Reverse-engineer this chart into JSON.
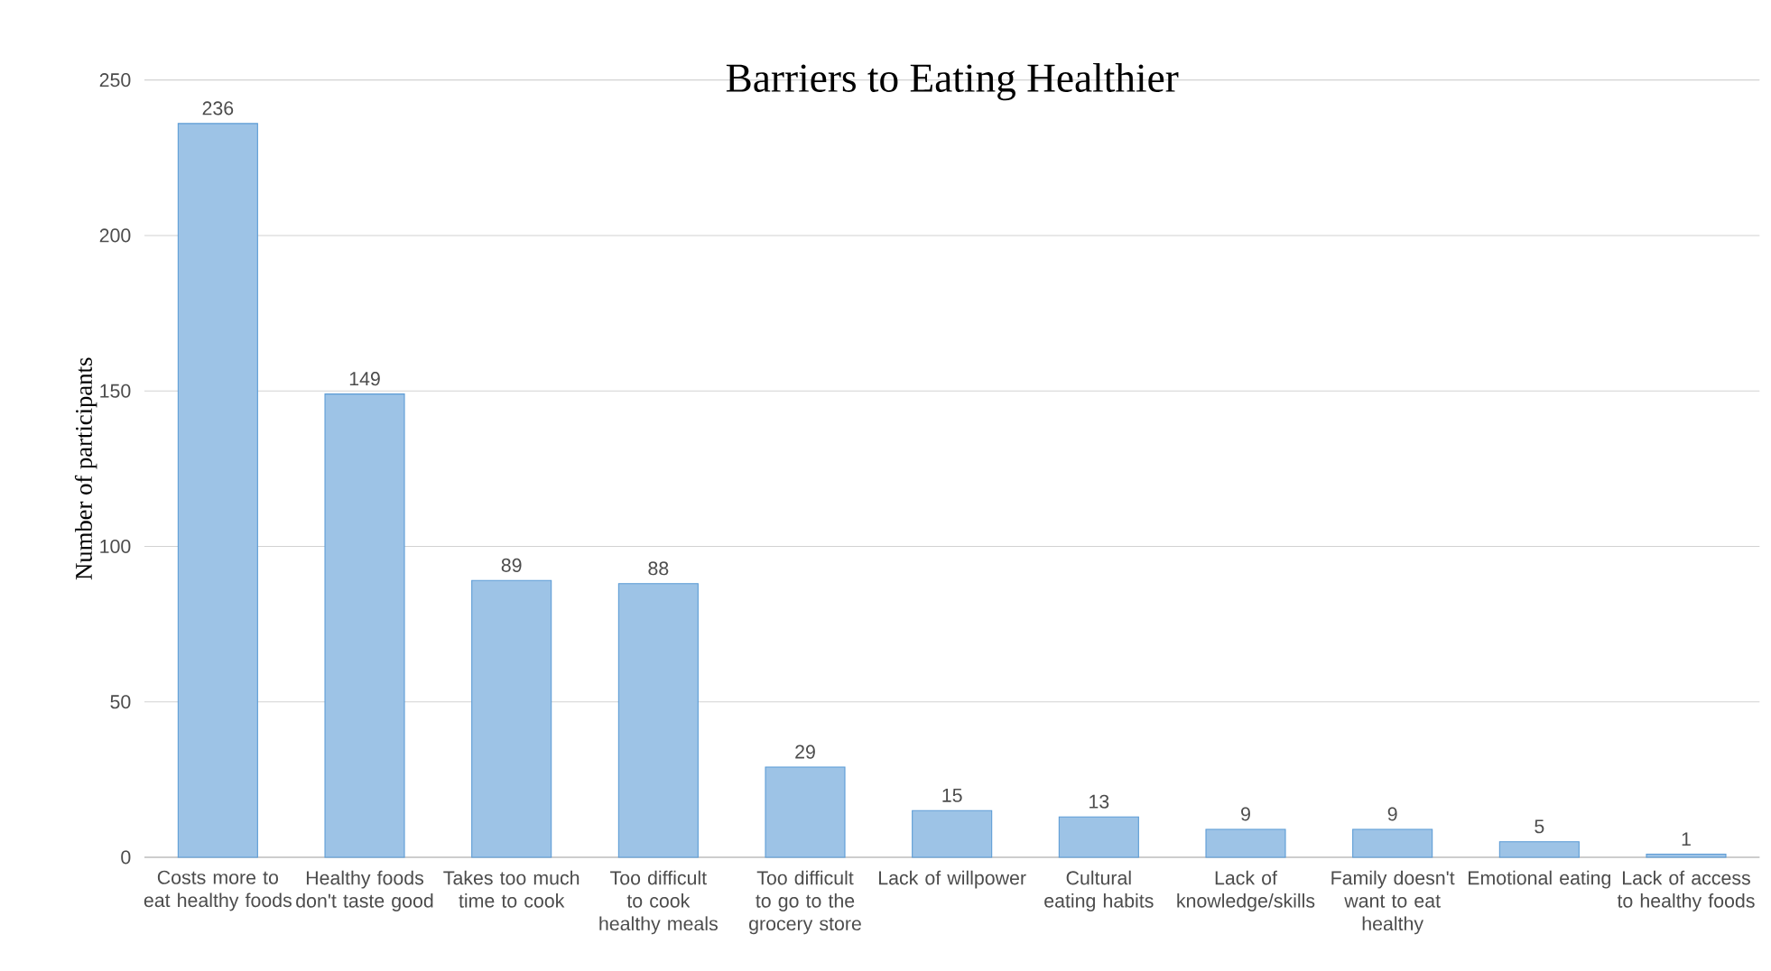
{
  "chart_data": {
    "type": "bar",
    "title": "Barriers to Eating Healthier",
    "ylabel": "Number of participants",
    "categories": [
      "Costs more to eat healthy foods",
      "Healthy foods don't taste good",
      "Takes too much time to cook",
      "Too difficult to cook healthy meals",
      "Too difficult to go to the grocery store",
      "Lack of willpower",
      "Cultural eating habits",
      "Lack of knowledge/skills",
      "Family doesn't want to eat healthy",
      "Emotional eating",
      "Lack of access to healthy foods"
    ],
    "values": [
      236,
      149,
      89,
      88,
      29,
      15,
      13,
      9,
      9,
      5,
      1
    ],
    "color": "#9dc3e6",
    "ylim": [
      0,
      250
    ],
    "yticks": [
      0,
      50,
      100,
      150,
      200,
      250
    ],
    "grid": "y",
    "data_labels": true
  }
}
